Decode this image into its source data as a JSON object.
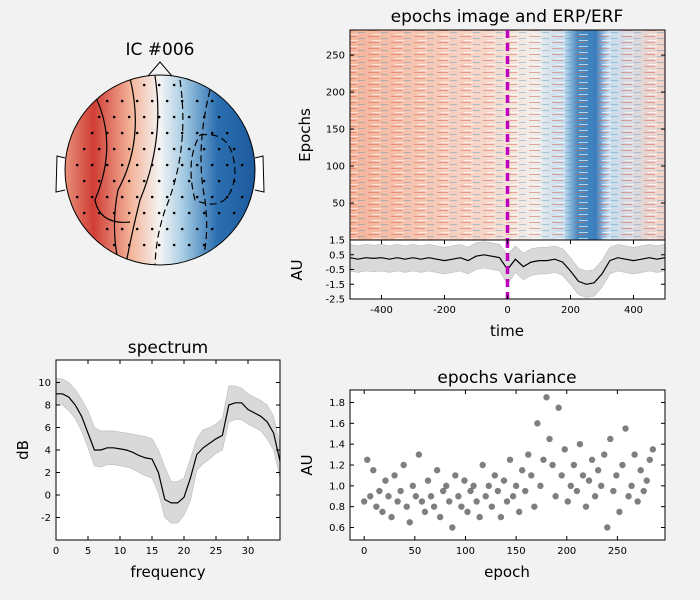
{
  "chart_data": [
    {
      "type": "topomap",
      "title": "IC #006"
    },
    {
      "type": "image",
      "title": "epochs image and ERP/ERF",
      "ylabel": "Epochs",
      "ylim": [
        0,
        284
      ],
      "yticks": [
        50,
        100,
        150,
        200,
        250
      ]
    },
    {
      "type": "erp",
      "xlabel": "time",
      "ylabel": "AU",
      "xlim": [
        -500,
        500
      ],
      "xticks": [
        -400,
        -200,
        0,
        200,
        400
      ],
      "ylim": [
        -2.5,
        1.5
      ],
      "yticks": [
        -2.5,
        -1.5,
        -0.5,
        0.5,
        1.5
      ],
      "vline": 0,
      "line_color": "#000000",
      "band_color": "#d9d9d9",
      "vline_color": "#bf00bf",
      "x": [
        -500,
        -475,
        -450,
        -425,
        -400,
        -375,
        -350,
        -325,
        -300,
        -275,
        -250,
        -225,
        -200,
        -175,
        -150,
        -125,
        -100,
        -75,
        -50,
        -25,
        0,
        25,
        50,
        75,
        100,
        125,
        150,
        175,
        200,
        225,
        250,
        275,
        300,
        325,
        350,
        375,
        400,
        425,
        450,
        475,
        500
      ],
      "values": [
        0.3,
        0.2,
        0.3,
        0.25,
        0.3,
        0.2,
        0.3,
        0.2,
        0.3,
        0.2,
        0.3,
        0.2,
        0.1,
        0.2,
        0.3,
        0.1,
        0.4,
        0.5,
        0.4,
        0.3,
        -0.5,
        0.2,
        -0.3,
        0,
        0.1,
        0.1,
        0.2,
        0,
        -0.6,
        -1.3,
        -1.5,
        -1.4,
        -0.8,
        0.1,
        0.3,
        0.2,
        0.1,
        0.2,
        0.3,
        0.2,
        0.3
      ],
      "upper": [
        1.2,
        1.1,
        1.2,
        1.15,
        1.2,
        1.1,
        1.2,
        1.1,
        1.2,
        1.1,
        1.2,
        1.1,
        1.0,
        1.1,
        1.2,
        1.0,
        1.3,
        1.4,
        1.3,
        1.2,
        0.5,
        1.1,
        0.6,
        0.9,
        1.0,
        1.0,
        1.1,
        0.9,
        0.3,
        -0.4,
        -0.6,
        -0.5,
        0.1,
        1.0,
        1.2,
        1.1,
        1.0,
        1.1,
        1.2,
        1.1,
        1.2
      ],
      "lower": [
        -0.6,
        -0.7,
        -0.6,
        -0.65,
        -0.6,
        -0.7,
        -0.6,
        -0.7,
        -0.6,
        -0.7,
        -0.6,
        -0.7,
        -0.8,
        -0.7,
        -0.6,
        -0.8,
        -0.5,
        -0.4,
        -0.5,
        -0.6,
        -1.5,
        -0.7,
        -1.2,
        -0.9,
        -0.8,
        -0.8,
        -0.7,
        -0.9,
        -1.5,
        -2.2,
        -2.4,
        -2.3,
        -1.7,
        -0.8,
        -0.6,
        -0.7,
        -0.8,
        -0.7,
        -0.6,
        -0.7,
        -0.6
      ]
    },
    {
      "type": "spectrum",
      "title": "spectrum",
      "xlabel": "frequency",
      "ylabel": "dB",
      "xlim": [
        0,
        35
      ],
      "xticks": [
        0,
        5,
        10,
        15,
        20,
        25,
        30
      ],
      "ylim": [
        -4,
        12
      ],
      "yticks": [
        -2,
        0,
        2,
        4,
        6,
        8,
        10
      ],
      "line_color": "#000000",
      "band_color": "#d9d9d9",
      "x": [
        0,
        1,
        2,
        3,
        4,
        5,
        6,
        7,
        8,
        9,
        10,
        11,
        12,
        13,
        14,
        15,
        16,
        17,
        18,
        19,
        20,
        21,
        22,
        23,
        24,
        25,
        26,
        27,
        28,
        29,
        30,
        31,
        32,
        33,
        34,
        35
      ],
      "values": [
        9,
        9,
        8.7,
        8,
        7,
        5.5,
        4,
        4,
        4.2,
        4.2,
        4.1,
        4,
        3.8,
        3.5,
        3.3,
        3.2,
        2,
        -0.4,
        -0.7,
        -0.7,
        -0.2,
        1.5,
        3.6,
        4.2,
        4.6,
        5,
        5.3,
        8,
        8.2,
        8.2,
        7.6,
        7.3,
        7,
        6.5,
        5.5,
        3
      ],
      "upper": [
        10.4,
        10.3,
        10,
        9.4,
        8.5,
        7.5,
        6,
        5.7,
        5.7,
        5.7,
        5.6,
        5.5,
        5.4,
        5.3,
        5.2,
        5,
        4,
        2.5,
        1.2,
        1.2,
        1.5,
        3.2,
        5,
        5.8,
        6,
        6.3,
        6.8,
        9.7,
        9.7,
        9.5,
        9,
        8.7,
        8.4,
        8,
        7,
        4.5
      ],
      "lower": [
        8,
        8,
        7.5,
        6.8,
        5.7,
        4.2,
        2.6,
        2.5,
        2.7,
        2.7,
        2.6,
        2.5,
        2.3,
        2,
        1.7,
        1.5,
        0.2,
        -2,
        -2.5,
        -2.5,
        -1.8,
        -0.5,
        2.2,
        2.8,
        3.2,
        3.7,
        4,
        6.5,
        6.7,
        6.7,
        6.3,
        6,
        5.7,
        5,
        4,
        1.5
      ]
    },
    {
      "type": "scatter",
      "title": "epochs variance",
      "xlabel": "epoch",
      "ylabel": "AU",
      "xlim": [
        -14,
        297
      ],
      "xticks": [
        0,
        50,
        100,
        150,
        200,
        250
      ],
      "ylim": [
        0.48,
        1.92
      ],
      "yticks": [
        0.6,
        0.8,
        {
          "value": 1,
          "label": "1.0"
        },
        1.2,
        1.4,
        1.6,
        1.8
      ],
      "color": "#000000",
      "x": [
        0,
        3,
        6,
        9,
        12,
        15,
        18,
        21,
        24,
        27,
        30,
        33,
        36,
        39,
        42,
        45,
        48,
        51,
        54,
        57,
        60,
        63,
        66,
        69,
        72,
        75,
        78,
        81,
        84,
        87,
        90,
        93,
        96,
        99,
        102,
        105,
        108,
        111,
        114,
        117,
        120,
        123,
        126,
        129,
        132,
        135,
        138,
        141,
        144,
        147,
        150,
        153,
        156,
        159,
        162,
        165,
        168,
        171,
        174,
        177,
        180,
        183,
        186,
        189,
        192,
        195,
        198,
        201,
        204,
        207,
        210,
        213,
        216,
        219,
        222,
        225,
        228,
        231,
        234,
        237,
        240,
        243,
        246,
        249,
        252,
        255,
        258,
        261,
        264,
        267,
        270,
        273,
        276,
        279,
        282,
        285
      ],
      "values": [
        0.85,
        1.25,
        0.9,
        1.15,
        0.8,
        0.95,
        0.75,
        1.05,
        0.9,
        0.7,
        1.1,
        0.85,
        0.95,
        1.2,
        0.8,
        0.65,
        1.0,
        0.9,
        1.3,
        0.85,
        0.75,
        1.05,
        0.9,
        0.8,
        1.15,
        0.7,
        0.95,
        1.0,
        0.85,
        0.6,
        1.1,
        0.9,
        0.8,
        1.05,
        0.75,
        0.95,
        1.0,
        0.85,
        0.7,
        1.2,
        0.9,
        1.0,
        0.8,
        1.1,
        0.95,
        0.7,
        1.05,
        0.85,
        1.25,
        0.9,
        1.0,
        0.75,
        1.15,
        0.95,
        1.3,
        1.1,
        0.8,
        1.6,
        1.0,
        1.25,
        1.85,
        1.45,
        1.2,
        0.9,
        1.75,
        1.1,
        1.35,
        0.85,
        1.0,
        1.2,
        0.95,
        1.4,
        1.1,
        0.8,
        1.05,
        1.25,
        0.9,
        1.15,
        1.0,
        1.3,
        0.6,
        1.45,
        0.95,
        1.1,
        0.75,
        1.2,
        1.55,
        0.9,
        1.0,
        1.3,
        0.85,
        1.15,
        0.95,
        1.05,
        1.25,
        1.35
      ]
    }
  ]
}
